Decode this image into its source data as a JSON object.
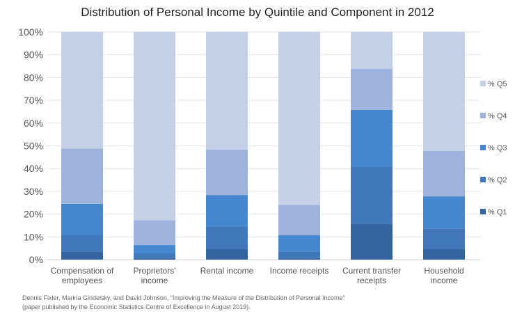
{
  "chart_data": {
    "type": "bar",
    "stacked": true,
    "title": "Distribution of Personal Income by Quintile and Component in 2012",
    "categories": [
      [
        "Compensation of",
        "employees"
      ],
      [
        "Proprietors'",
        "income"
      ],
      [
        "Rental income"
      ],
      [
        "Income receipts"
      ],
      [
        "Current transfer",
        "receipts"
      ],
      [
        "Household",
        "income"
      ]
    ],
    "series": [
      {
        "name": "% Q1",
        "color": "#3366a0",
        "values": [
          3.6,
          0.7,
          4.6,
          0.7,
          15.8,
          4.6
        ]
      },
      {
        "name": "% Q2",
        "color": "#3f77ba",
        "values": [
          7.1,
          1.9,
          9.9,
          2.9,
          25.0,
          9.1
        ]
      },
      {
        "name": "% Q3",
        "color": "#4688cf",
        "values": [
          13.8,
          3.8,
          13.9,
          7.1,
          25.0,
          14.1
        ]
      },
      {
        "name": "% Q4",
        "color": "#9db3db",
        "values": [
          24.3,
          10.9,
          19.9,
          13.3,
          18.1,
          20.0
        ]
      },
      {
        "name": "% Q5",
        "color": "#c5d0e8",
        "values": [
          51.2,
          82.7,
          51.7,
          76.0,
          16.1,
          52.2
        ]
      }
    ],
    "ylim": [
      0,
      100
    ],
    "yticks": [
      "0%",
      "10%",
      "20%",
      "30%",
      "40%",
      "50%",
      "60%",
      "70%",
      "80%",
      "90%",
      "100%"
    ],
    "grid": true,
    "legend": "right"
  },
  "source": {
    "line1": "Dennis Fixler, Marina Gindelsky, and David Johnson, “Improving the Measure of the Distribution of Personal Income”",
    "line2": "(paper published by the Economic Statistics Centre of Excellence in August 2019)."
  }
}
